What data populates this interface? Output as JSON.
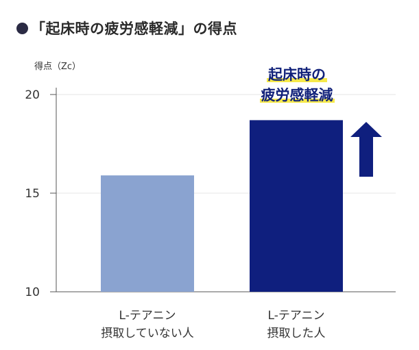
{
  "title": "「起床時の疲労感軽減」の得点",
  "chart_data": {
    "type": "bar",
    "ylabel": "得点（Zc）",
    "ylim": [
      10,
      20
    ],
    "yticks": [
      10,
      15,
      20
    ],
    "grid": true,
    "categories": [
      [
        "L-テアニン",
        "摂取していない人"
      ],
      [
        "L-テアニン",
        "摂取した人"
      ]
    ],
    "values": [
      15.9,
      18.7
    ],
    "colors": [
      "#8aa3d0",
      "#0f1f7e"
    ],
    "annotation": [
      "起床時の",
      "疲労感軽減"
    ],
    "arrow_color": "#0f1f7e"
  }
}
